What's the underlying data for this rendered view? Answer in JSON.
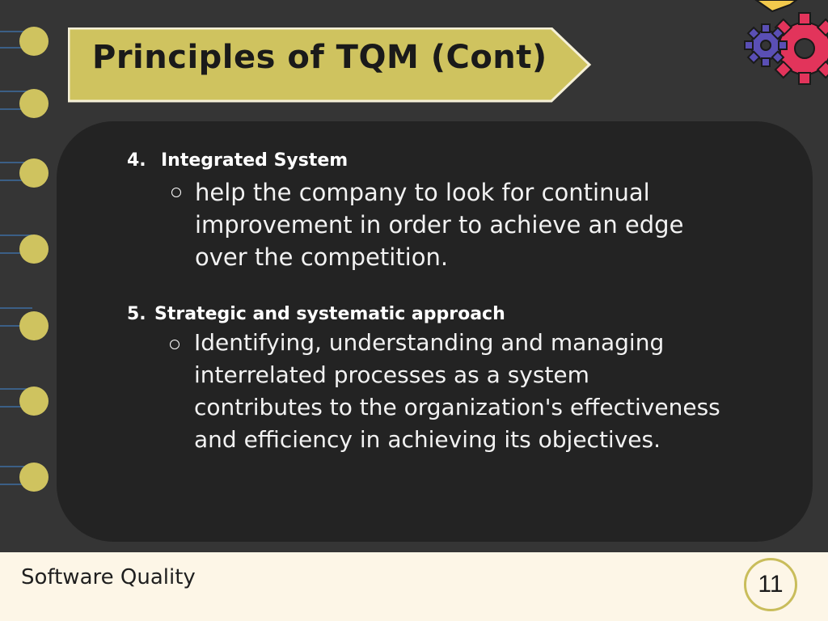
{
  "title": "Principles of TQM (Cont)",
  "items": [
    {
      "number": "4.",
      "heading": "Integrated System",
      "body_lines": [
        "help the company to look for continual",
        "improvement in order to achieve an edge",
        "over the competition."
      ]
    },
    {
      "number": "5.",
      "heading": "Strategic and systematic approach",
      "body_lines": [
        "Identifying, understanding and managing",
        "interrelated processes as a system",
        "contributes to the organization's effectiveness",
        "and efficiency in achieving its objectives."
      ]
    }
  ],
  "footer": {
    "label": "Software Quality",
    "page_number": "11"
  },
  "colors": {
    "background": "#353535",
    "banner": "#cfc35f",
    "content_box": "#232323",
    "footer": "#fdf6e7"
  }
}
